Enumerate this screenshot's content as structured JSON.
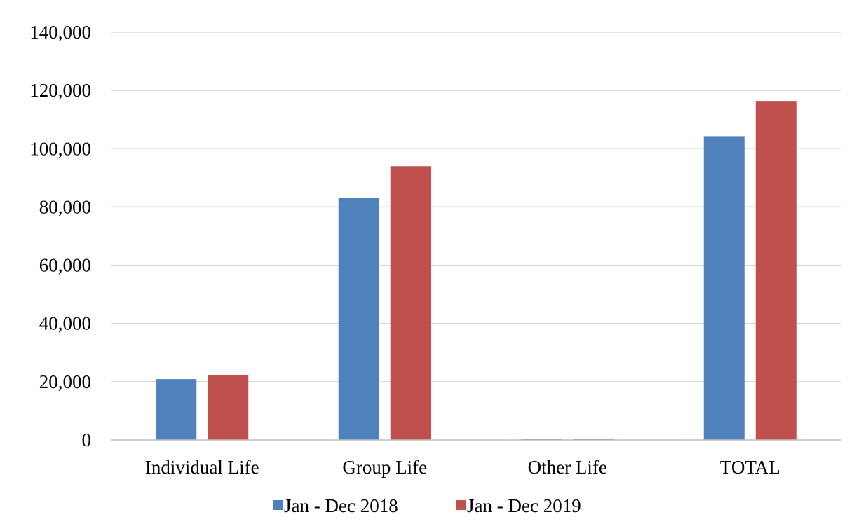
{
  "chart_data": {
    "type": "bar",
    "title": "",
    "xlabel": "",
    "ylabel": "",
    "categories": [
      "Individual Life",
      "Group Life",
      "Other Life",
      "TOTAL"
    ],
    "series": [
      {
        "name": "Jan - Dec 2018",
        "color": "#4f81bd",
        "values": [
          20900,
          83000,
          400,
          104300
        ]
      },
      {
        "name": "Jan - Dec 2019",
        "color": "#c0504d",
        "values": [
          22200,
          94000,
          300,
          116400
        ]
      }
    ],
    "ylim": [
      0,
      140000
    ],
    "yticks": [
      0,
      20000,
      40000,
      60000,
      80000,
      100000,
      120000,
      140000
    ],
    "ytick_labels": [
      "0",
      "20,000",
      "40,000",
      "60,000",
      "80,000",
      "100,000",
      "120,000",
      "140,000"
    ],
    "grid": true,
    "legend_position": "bottom"
  }
}
